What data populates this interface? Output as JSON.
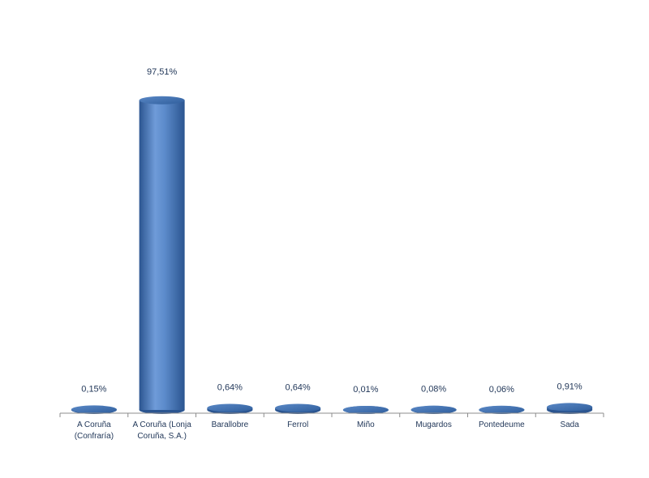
{
  "chart_data": {
    "type": "bar",
    "style": "3d-cylinder",
    "title": "",
    "xlabel": "",
    "ylabel": "",
    "ylim": [
      0,
      100
    ],
    "grid": false,
    "legend": "none",
    "categories": [
      [
        "A Coruña",
        "(Confraría)"
      ],
      [
        "A Coruña (Lonja",
        "Coruña, S.A.)"
      ],
      [
        "Barallobre"
      ],
      [
        "Ferrol"
      ],
      [
        "Miño"
      ],
      [
        "Mugardos"
      ],
      [
        "Pontedeume"
      ],
      [
        "Sada"
      ]
    ],
    "values": [
      0.15,
      97.51,
      0.64,
      0.64,
      0.01,
      0.08,
      0.06,
      0.91
    ],
    "data_labels": [
      "0,15%",
      "97,51%",
      "0,64%",
      "0,64%",
      "0,01%",
      "0,08%",
      "0,06%",
      "0,91%"
    ],
    "colors": {
      "bar": "#4a7ebf",
      "bar_dark": "#2b5590",
      "bar_light": "#7fa8e0",
      "label": "#1f3557",
      "axis": "#8c8c8c"
    }
  }
}
